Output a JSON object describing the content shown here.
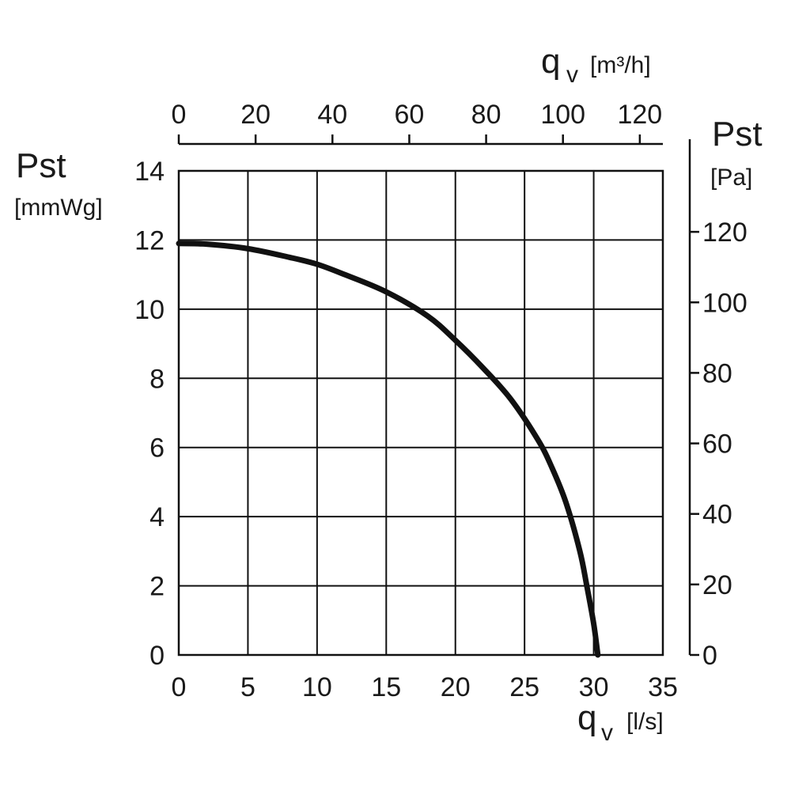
{
  "chart_data": {
    "type": "line",
    "left_axis": {
      "title": "Pst",
      "unit": "[mmWg]",
      "ticks": [
        "0",
        "2",
        "4",
        "6",
        "8",
        "10",
        "12",
        "14"
      ],
      "range": [
        0,
        14
      ]
    },
    "bottom_axis": {
      "title": "qv",
      "subscript": "v",
      "title_main": "q",
      "unit": "[l/s]",
      "ticks": [
        "0",
        "5",
        "10",
        "15",
        "20",
        "25",
        "30",
        "35"
      ],
      "range": [
        0,
        35
      ]
    },
    "top_axis": {
      "title_main": "q",
      "subscript": "v",
      "unit": "[m³/h]",
      "ticks": [
        "0",
        "20",
        "40",
        "60",
        "80",
        "100",
        "120"
      ],
      "range": [
        0,
        126
      ]
    },
    "right_axis": {
      "title": "Pst",
      "unit": "[Pa]",
      "ticks": [
        "0",
        "20",
        "40",
        "60",
        "80",
        "100",
        "120"
      ],
      "range": [
        0,
        137.3
      ]
    },
    "grid": true,
    "series": [
      {
        "x": [
          0,
          2,
          5,
          8,
          10,
          12,
          15,
          18,
          20,
          22,
          24,
          26,
          27,
          28,
          29,
          29.5,
          30,
          30.3
        ],
        "y": [
          11.9,
          11.88,
          11.75,
          11.5,
          11.3,
          11.0,
          10.5,
          9.8,
          9.1,
          8.3,
          7.4,
          6.2,
          5.4,
          4.4,
          3.0,
          2.0,
          0.9,
          0
        ]
      }
    ]
  }
}
